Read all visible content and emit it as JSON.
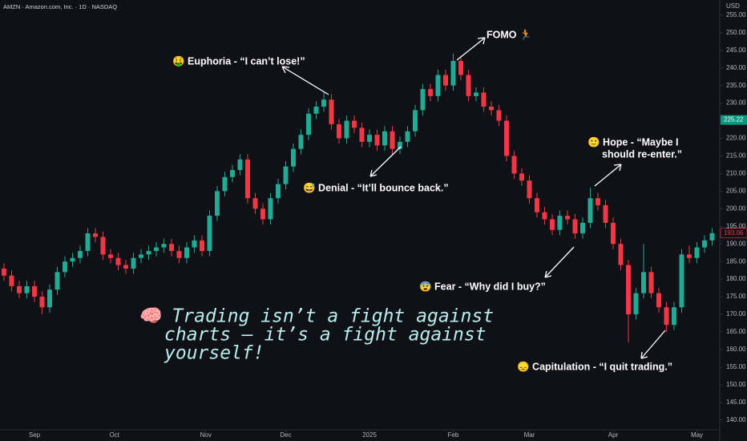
{
  "header": "AMZN · Amazon.com, Inc. · 1D · NASDAQ",
  "chart_data": {
    "type": "candlestick",
    "currency": "USD",
    "up_color": "#22ab94",
    "down_color": "#f23645",
    "open": [
      183,
      181,
      178,
      176,
      178,
      175,
      172,
      177,
      182,
      185,
      186,
      188,
      193,
      192,
      187,
      186,
      184,
      183,
      186,
      187,
      188,
      189,
      190,
      188,
      186,
      189,
      191,
      188,
      198,
      205,
      209,
      211,
      214,
      203,
      200,
      197,
      203,
      207,
      212,
      217,
      221,
      227,
      229,
      231,
      224,
      220,
      225,
      223,
      219,
      221,
      218,
      222,
      217,
      219,
      222,
      228,
      234,
      232,
      238,
      235,
      242,
      238,
      232,
      233,
      229,
      228,
      225,
      215,
      210,
      208,
      203,
      199,
      197,
      194,
      198,
      197,
      193,
      196,
      203,
      201,
      196,
      190,
      184,
      170,
      176,
      182,
      176,
      172,
      167,
      172,
      187,
      186,
      189,
      191
    ],
    "high": [
      184.5,
      182.5,
      179.5,
      179.5,
      179.5,
      176.5,
      178.5,
      183.5,
      186.5,
      187.5,
      189.5,
      194.5,
      194.5,
      193.5,
      188.5,
      187.5,
      185.5,
      187.5,
      188.5,
      189.5,
      190.5,
      191.5,
      191.5,
      189.5,
      190.5,
      192.5,
      192.5,
      199.5,
      206.5,
      210.5,
      212.5,
      215.5,
      215.5,
      204.5,
      201.5,
      204.5,
      208.5,
      213.5,
      218.5,
      222.5,
      228.5,
      230.5,
      233,
      232.5,
      225.5,
      226.5,
      226.5,
      224.5,
      222.5,
      222.5,
      223.5,
      223.5,
      220.5,
      223.5,
      229.5,
      235.5,
      235.5,
      239.5,
      239.5,
      244,
      243.5,
      239.5,
      234.5,
      234.5,
      230.5,
      229.5,
      226.5,
      216.5,
      211.5,
      209.5,
      204.5,
      200.5,
      198.5,
      199.5,
      199.5,
      198.5,
      197.5,
      206,
      204.5,
      202.5,
      197.5,
      191.5,
      185.5,
      177.5,
      190,
      183.5,
      177.5,
      173.5,
      173.5,
      188.5,
      189.5,
      190.5,
      192.5,
      194.5
    ],
    "low": [
      179.5,
      176.5,
      174.5,
      174.5,
      173.5,
      170,
      170.5,
      175.5,
      180.5,
      183.5,
      184.5,
      186.5,
      190.5,
      185.5,
      184.5,
      182.5,
      181.5,
      181.5,
      184.5,
      185.5,
      186.5,
      187.5,
      186.5,
      184.5,
      184.5,
      187.5,
      186.5,
      186.5,
      196.5,
      203.5,
      207.5,
      209.5,
      201.5,
      198.5,
      195.5,
      195.5,
      201.5,
      205.5,
      210.5,
      215.5,
      219.5,
      225.5,
      227.5,
      222.5,
      218.5,
      218.5,
      221.5,
      217.5,
      217.5,
      216.5,
      216.5,
      215.5,
      215.5,
      217.5,
      220.5,
      226.5,
      230.5,
      230.5,
      233.5,
      233.5,
      236.5,
      230.5,
      230.5,
      227.5,
      226.5,
      223.5,
      213.5,
      208.5,
      206.5,
      201.5,
      197.5,
      195.5,
      192.5,
      192.5,
      195.5,
      191.5,
      191.5,
      194.5,
      199.5,
      194.5,
      188.5,
      182.5,
      162,
      168.5,
      174.5,
      174.5,
      170.5,
      165,
      165.5,
      170.5,
      184.5,
      184.5,
      187.5,
      189.5
    ],
    "close": [
      181,
      178,
      176,
      178,
      175,
      172,
      177,
      182,
      185,
      186,
      188,
      193,
      192,
      187,
      186,
      184,
      183,
      186,
      187,
      188,
      189,
      190,
      188,
      186,
      189,
      191,
      188,
      198,
      205,
      209,
      211,
      214,
      203,
      200,
      197,
      203,
      207,
      212,
      217,
      221,
      227,
      229,
      231,
      224,
      220,
      225,
      223,
      219,
      221,
      218,
      222,
      217,
      219,
      222,
      228,
      234,
      232,
      238,
      235,
      242,
      238,
      232,
      233,
      229,
      228,
      225,
      215,
      210,
      208,
      203,
      199,
      197,
      194,
      198,
      197,
      193,
      196,
      203,
      201,
      196,
      190,
      184,
      170,
      176,
      182,
      176,
      172,
      167,
      172,
      187,
      186,
      189,
      191,
      193.06
    ],
    "ylim": [
      137.2,
      259.3
    ],
    "yticks": [
      {
        "value": 140,
        "label": "140.00"
      },
      {
        "value": 145,
        "label": "145.00"
      },
      {
        "value": 150,
        "label": "150.00"
      },
      {
        "value": 155,
        "label": "155.00"
      },
      {
        "value": 160,
        "label": "160.00"
      },
      {
        "value": 165,
        "label": "165.00"
      },
      {
        "value": 170,
        "label": "170.00"
      },
      {
        "value": 175,
        "label": "175.00"
      },
      {
        "value": 180,
        "label": "180.00"
      },
      {
        "value": 185,
        "label": "185.00"
      },
      {
        "value": 190,
        "label": "190.00"
      },
      {
        "value": 195,
        "label": "195.00"
      },
      {
        "value": 200,
        "label": "200.00"
      },
      {
        "value": 205,
        "label": "205.00"
      },
      {
        "value": 210,
        "label": "210.00"
      },
      {
        "value": 215,
        "label": "215.00"
      },
      {
        "value": 220,
        "label": "220.00"
      },
      {
        "value": 225,
        "label": "225.00"
      },
      {
        "value": 230,
        "label": "230.00"
      },
      {
        "value": 235,
        "label": "235.00"
      },
      {
        "value": 240,
        "label": "240.00"
      },
      {
        "value": 245,
        "label": "245.00"
      },
      {
        "value": 250,
        "label": "250.00"
      },
      {
        "value": 255,
        "label": "255.00"
      }
    ],
    "xticks": [
      {
        "value": 4,
        "label": "Sep"
      },
      {
        "value": 14.5,
        "label": "Oct"
      },
      {
        "value": 26.5,
        "label": "Nov"
      },
      {
        "value": 37,
        "label": "Dec"
      },
      {
        "value": 48,
        "label": "2025"
      },
      {
        "value": 59,
        "label": "Feb"
      },
      {
        "value": 69,
        "label": "Mar"
      },
      {
        "value": 80,
        "label": "Apr"
      },
      {
        "value": 91,
        "label": "May"
      }
    ],
    "marked_prices": [
      {
        "value": 225.22,
        "color": "#089981"
      },
      {
        "value": 193.06,
        "color": "#f23645"
      }
    ]
  },
  "annotations": {
    "euphoria": "🤑 Euphoria - “I can’t lose!”",
    "fomo": "FOMO 🏃",
    "denial": "😅 Denial - “It’ll bounce back.”",
    "hope": [
      "🙂 Hope - “Maybe I",
      "should re-enter.”"
    ],
    "fear": "😨 Fear - “Why did I buy?”",
    "capitulation": "😞 Capitulation - “I quit trading.”"
  },
  "quote": [
    "🧠 Trading isn’t a fight against",
    "charts — it’s a fight against",
    "yourself!"
  ]
}
